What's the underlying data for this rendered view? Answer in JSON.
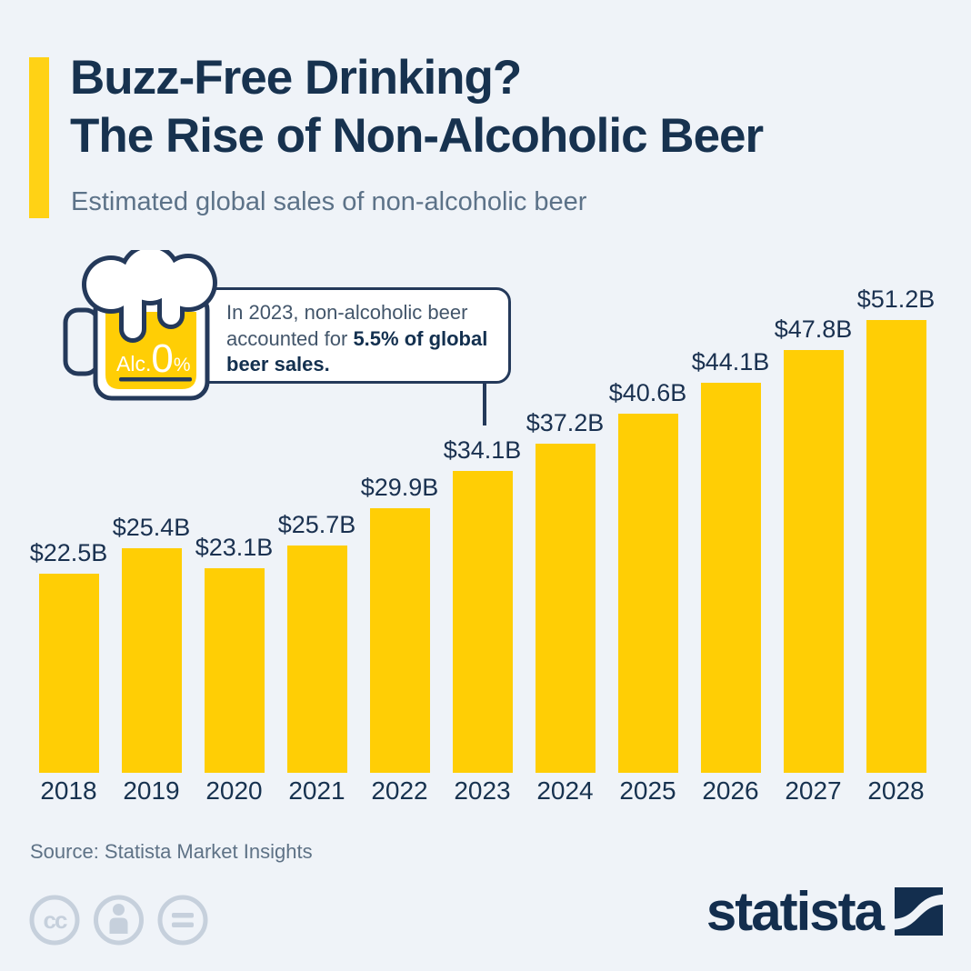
{
  "header": {
    "title_line1": "Buzz-Free Drinking?",
    "title_line2": "The Rise of Non-Alcoholic Beer",
    "subtitle": "Estimated global sales of non-alcoholic beer"
  },
  "callout": {
    "text_regular": "In 2023, non-alcoholic beer accounted for ",
    "text_bold": "5.5% of global beer sales."
  },
  "mug": {
    "label_prefix": "Alc.",
    "label_value": "0",
    "label_unit": "%"
  },
  "chart_data": {
    "type": "bar",
    "title": "Estimated global sales of non-alcoholic beer",
    "categories": [
      "2018",
      "2019",
      "2020",
      "2021",
      "2022",
      "2023",
      "2024",
      "2025",
      "2026",
      "2027",
      "2028"
    ],
    "values": [
      22.5,
      25.4,
      23.1,
      25.7,
      29.9,
      34.1,
      37.2,
      40.6,
      44.1,
      47.8,
      51.2
    ],
    "labels": [
      "$22.5B",
      "$25.4B",
      "$23.1B",
      "$25.7B",
      "$29.9B",
      "$34.1B",
      "$37.2B",
      "$40.6B",
      "$44.1B",
      "$47.8B",
      "$51.2B"
    ],
    "unit": "billion USD",
    "xlabel": "",
    "ylabel": "",
    "ylim": [
      0,
      55
    ],
    "grid": false,
    "legend": false,
    "data_labels": true,
    "bar_color": "#FFCE05",
    "label_color": "#1A3150",
    "annotation": {
      "year": "2023",
      "note": "In 2023, non-alcoholic beer accounted for 5.5% of global beer sales."
    }
  },
  "footer": {
    "source": "Source: Statista Market Insights",
    "cc_label": "cc",
    "brand_wordmark": "statista"
  },
  "colors": {
    "background": "#EFF3F8",
    "accent_yellow": "#FFD215",
    "bar_yellow": "#FFCE05",
    "navy": "#17324F",
    "slate_text": "#5C7288",
    "callout_border": "#24395A",
    "license_gray": "#C6D0DC",
    "brand_navy": "#132E4E"
  }
}
